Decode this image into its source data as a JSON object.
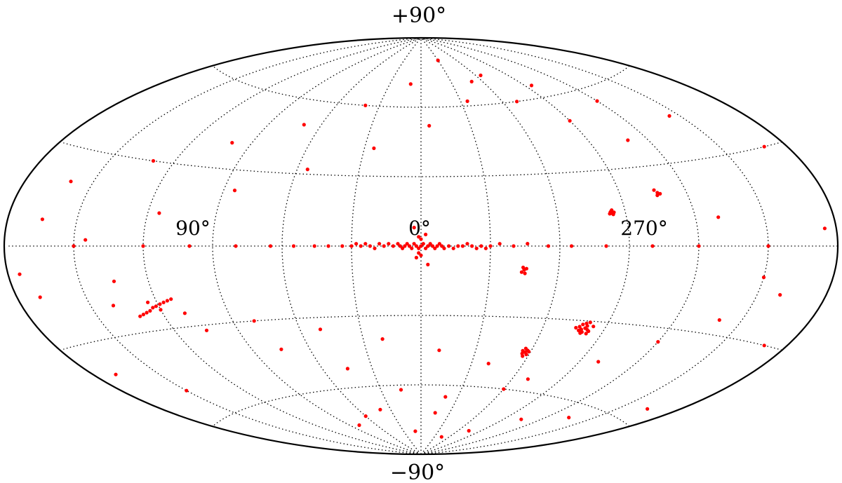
{
  "chart_data": {
    "type": "scatter",
    "projection": "aitoff",
    "coordinate_system": "galactic",
    "labels": {
      "top": "+90°",
      "bottom": "−90°",
      "lon_left": "90°",
      "lon_center": "0°",
      "lon_right": "270°"
    },
    "x_range_deg": [
      -180,
      180
    ],
    "y_range_deg": [
      -90,
      90
    ],
    "longitude_direction": "increasing-left",
    "grid": {
      "on": true,
      "style": "dotted",
      "lon_step_deg": 30,
      "lat_step_deg": 30
    },
    "marker_color": "#ff0000",
    "series": [
      {
        "points_lon_lat_deg": [
          [
            0,
            0
          ],
          [
            1,
            -1
          ],
          [
            -1,
            1
          ],
          [
            2,
            0
          ],
          [
            -2,
            -1
          ],
          [
            3,
            1
          ],
          [
            -3,
            0
          ],
          [
            4,
            -1
          ],
          [
            -4,
            1
          ],
          [
            5,
            0
          ],
          [
            -5,
            0
          ],
          [
            6,
            1
          ],
          [
            -6,
            -1
          ],
          [
            7,
            0
          ],
          [
            -7,
            0
          ],
          [
            8,
            -1
          ],
          [
            -8,
            1
          ],
          [
            9,
            0
          ],
          [
            -9,
            0
          ],
          [
            10,
            1
          ],
          [
            -10,
            -1
          ],
          [
            12,
            0
          ],
          [
            -12,
            0
          ],
          [
            14,
            1
          ],
          [
            -14,
            -1
          ],
          [
            16,
            0
          ],
          [
            -16,
            0
          ],
          [
            18,
            1
          ],
          [
            -18,
            0
          ],
          [
            20,
            -1
          ],
          [
            -20,
            1
          ],
          [
            22,
            0
          ],
          [
            -22,
            0
          ],
          [
            24,
            1
          ],
          [
            -24,
            -1
          ],
          [
            26,
            0
          ],
          [
            -26,
            0
          ],
          [
            28,
            1
          ],
          [
            -28,
            -1
          ],
          [
            30,
            0
          ],
          [
            -30,
            0
          ],
          [
            34,
            0
          ],
          [
            -34,
            1
          ],
          [
            40,
            0
          ],
          [
            -40,
            0
          ],
          [
            46,
            0
          ],
          [
            -46,
            1
          ],
          [
            55,
            0
          ],
          [
            -55,
            0
          ],
          [
            65,
            0
          ],
          [
            -65,
            0
          ],
          [
            80,
            0
          ],
          [
            -80,
            0
          ],
          [
            100,
            0
          ],
          [
            -100,
            0
          ],
          [
            120,
            0
          ],
          [
            -120,
            0
          ],
          [
            150,
            0
          ],
          [
            -150,
            0
          ],
          [
            0,
            3
          ],
          [
            1,
            -3
          ],
          [
            -2,
            5
          ],
          [
            2,
            -5
          ],
          [
            3,
            8
          ],
          [
            -3,
            -8
          ],
          [
            0,
            -4
          ],
          [
            1,
            4
          ],
          [
            -80.5,
            -32.9
          ],
          [
            -79,
            -33.5
          ],
          [
            -81,
            -32
          ],
          [
            -78,
            -34
          ],
          [
            -82,
            -33.5
          ],
          [
            -80,
            -31
          ],
          [
            -77.5,
            -32.5
          ],
          [
            -83,
            -34
          ],
          [
            -79.5,
            -35
          ],
          [
            -81.5,
            -30.5
          ],
          [
            -76,
            -33
          ],
          [
            -84,
            -32
          ],
          [
            -80,
            -34.5
          ],
          [
            -78.5,
            -31.5
          ],
          [
            -82.5,
            -35
          ],
          [
            -57.2,
            -44.3
          ],
          [
            -56,
            -45
          ],
          [
            -58,
            -43.5
          ],
          [
            -55.5,
            -43.8
          ],
          [
            -58.5,
            -45.2
          ],
          [
            -57,
            -46
          ],
          [
            -56.5,
            -42.8
          ],
          [
            -59,
            -44
          ],
          [
            121.2,
            -21.6
          ],
          [
            123,
            -22
          ],
          [
            119,
            -21
          ],
          [
            125,
            -23
          ],
          [
            117,
            -20.5
          ],
          [
            127,
            -23.5
          ],
          [
            115,
            -20
          ],
          [
            129,
            -24
          ],
          [
            113,
            -19.5
          ],
          [
            131,
            -24.5
          ],
          [
            120,
            -23
          ],
          [
            124,
            -20
          ],
          [
            -84,
            13
          ],
          [
            -83.5,
            13.5
          ],
          [
            -84.5,
            12.5
          ],
          [
            -83,
            12.8
          ],
          [
            -85,
            13.3
          ],
          [
            -84.2,
            14.2
          ],
          [
            -45,
            -10
          ],
          [
            -44,
            -11
          ],
          [
            -46,
            -9.5
          ],
          [
            -44.5,
            -9
          ],
          [
            -45.5,
            -11.5
          ],
          [
            -107,
            20
          ],
          [
            -106,
            21
          ],
          [
            -108,
            19.5
          ],
          [
            -106.5,
            19
          ],
          [
            40,
            -70
          ],
          [
            60,
            -72
          ],
          [
            80,
            -75
          ],
          [
            -60,
            -60
          ],
          [
            -20,
            -65
          ],
          [
            10,
            -80
          ],
          [
            150,
            -50
          ],
          [
            170,
            -40
          ],
          [
            -170,
            -30
          ],
          [
            -150,
            -10
          ],
          [
            -130,
            10
          ],
          [
            -110,
            40
          ],
          [
            -90,
            50
          ],
          [
            -70,
            60
          ],
          [
            -50,
            70
          ],
          [
            -30,
            80
          ],
          [
            10,
            70
          ],
          [
            40,
            60
          ],
          [
            70,
            50
          ],
          [
            100,
            40
          ],
          [
            130,
            30
          ],
          [
            160,
            20
          ],
          [
            -175,
            5
          ],
          [
            -160,
            -15
          ],
          [
            -140,
            -25
          ],
          [
            -120,
            -35
          ],
          [
            -100,
            -45
          ],
          [
            -70,
            -55
          ],
          [
            -40,
            -50
          ],
          [
            -10,
            -45
          ],
          [
            20,
            -40
          ],
          [
            50,
            -35
          ],
          [
            80,
            -30
          ],
          [
            110,
            -25
          ],
          [
            140,
            -20
          ],
          [
            170,
            -15
          ],
          [
            -165,
            -55
          ],
          [
            -135,
            -65
          ],
          [
            -105,
            -70
          ],
          [
            -75,
            -78
          ],
          [
            -45,
            -82
          ],
          [
            -15,
            -72
          ],
          [
            15,
            -62
          ],
          [
            45,
            -52
          ],
          [
            75,
            -42
          ],
          [
            105,
            -32
          ],
          [
            135,
            -12
          ],
          [
            165,
            8
          ],
          [
            -170,
            30
          ],
          [
            -145,
            45
          ],
          [
            -120,
            55
          ],
          [
            -95,
            65
          ],
          [
            -65,
            72
          ],
          [
            -35,
            62
          ],
          [
            -5,
            52
          ],
          [
            25,
            42
          ],
          [
            55,
            32
          ],
          [
            85,
            22
          ],
          [
            115,
            12
          ],
          [
            145,
            2
          ],
          [
            175,
            -8
          ]
        ]
      }
    ]
  }
}
